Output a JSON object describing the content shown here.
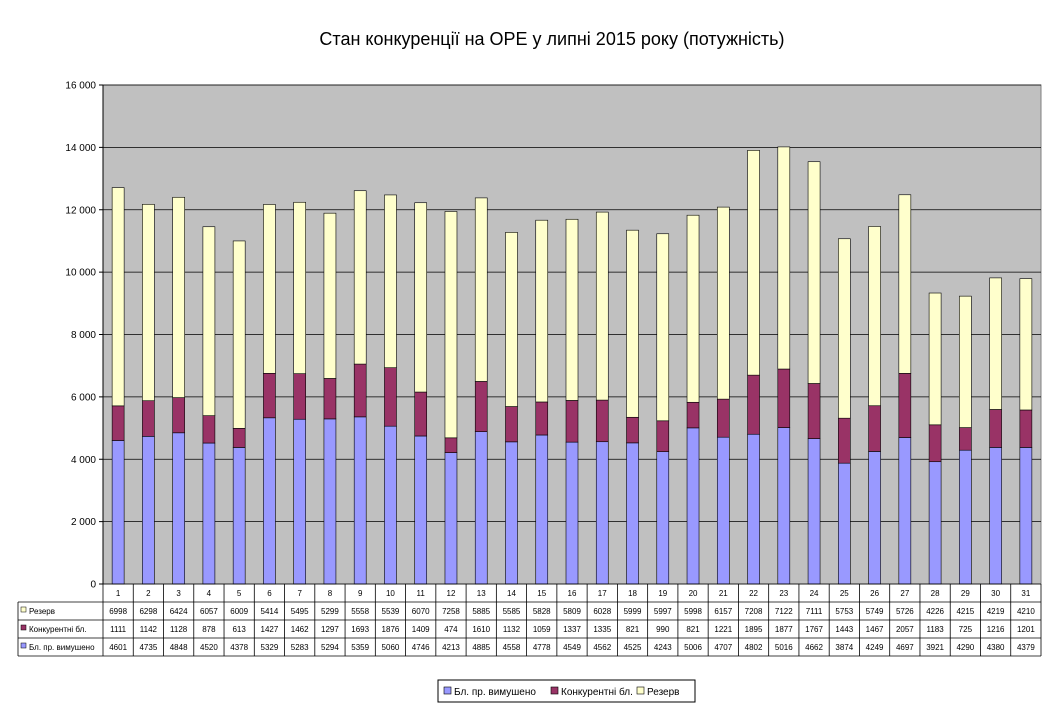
{
  "chart_data": {
    "type": "bar",
    "stacked": true,
    "title": "Стан конкуренції на ОРЕ  у липні 2015 року (потужність)",
    "categories": [
      "1",
      "2",
      "3",
      "4",
      "5",
      "6",
      "7",
      "8",
      "9",
      "10",
      "11",
      "12",
      "13",
      "14",
      "15",
      "16",
      "17",
      "18",
      "19",
      "20",
      "21",
      "22",
      "23",
      "24",
      "25",
      "26",
      "27",
      "28",
      "29",
      "30",
      "31"
    ],
    "ylim": [
      0,
      16000
    ],
    "yticks": [
      0,
      2000,
      4000,
      6000,
      8000,
      10000,
      12000,
      14000,
      16000
    ],
    "ytick_labels": [
      "0",
      "2 000",
      "4 000",
      "6 000",
      "8 000",
      "10 000",
      "12 000",
      "14 000",
      "16 000"
    ],
    "grid": true,
    "legend_position": "bottom",
    "series": [
      {
        "name": "Бл. пр. вимушено",
        "color": "#9999ff",
        "values": [
          4601,
          4735,
          4848,
          4520,
          4378,
          5329,
          5283,
          5294,
          5359,
          5060,
          4746,
          4213,
          4885,
          4558,
          4778,
          4549,
          4562,
          4525,
          4243,
          5006,
          4707,
          4802,
          5016,
          4662,
          3874,
          4249,
          4697,
          3921,
          4290,
          4380,
          4379
        ]
      },
      {
        "name": "Конкурентні бл.",
        "color": "#993366",
        "values": [
          1111,
          1142,
          1128,
          878,
          613,
          1427,
          1462,
          1297,
          1693,
          1876,
          1409,
          474,
          1610,
          1132,
          1059,
          1337,
          1335,
          821,
          990,
          821,
          1221,
          1895,
          1877,
          1767,
          1443,
          1467,
          2057,
          1183,
          725,
          1216,
          1201
        ]
      },
      {
        "name": "Резерв",
        "color": "#ffffcc",
        "values": [
          6998,
          6298,
          6424,
          6057,
          6009,
          5414,
          5495,
          5299,
          5558,
          5539,
          6070,
          7258,
          5885,
          5585,
          5828,
          5809,
          6028,
          5999,
          5997,
          5998,
          6157,
          7208,
          7122,
          7111,
          5753,
          5749,
          5726,
          4226,
          4215,
          4219,
          4210
        ]
      }
    ],
    "table_rows": [
      {
        "label": "Резерв",
        "series_index": 2
      },
      {
        "label": "Конкурентні бл.",
        "series_index": 1
      },
      {
        "label": "Бл. пр. вимушено",
        "series_index": 0
      }
    ],
    "plot_background": "#c0c0c0"
  }
}
